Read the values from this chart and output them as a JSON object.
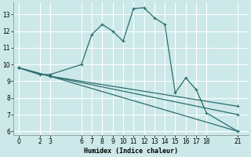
{
  "xlabel": "Humidex (Indice chaleur)",
  "line_color": "#2a6e6e",
  "bg_color": "#cce8e8",
  "grid_color": "#b0d8d8",
  "xlim": [
    -0.5,
    22
  ],
  "ylim": [
    5.8,
    13.7
  ],
  "xticks": [
    0,
    2,
    3,
    6,
    7,
    8,
    9,
    10,
    11,
    12,
    13,
    14,
    15,
    16,
    17,
    18,
    21
  ],
  "yticks": [
    6,
    7,
    8,
    9,
    10,
    11,
    12,
    13
  ],
  "series1_x": [
    0,
    2,
    3,
    6,
    7,
    8,
    9,
    10,
    11,
    12,
    13,
    14,
    15,
    16,
    17,
    18,
    21
  ],
  "series1_y": [
    9.8,
    9.4,
    9.4,
    10.0,
    11.8,
    12.4,
    12.0,
    11.4,
    13.35,
    13.4,
    12.8,
    12.4,
    8.3,
    9.2,
    8.5,
    7.1,
    6.0
  ],
  "series2_x": [
    0,
    3,
    21
  ],
  "series2_y": [
    9.8,
    9.3,
    6.0
  ],
  "series3_x": [
    0,
    3,
    21
  ],
  "series3_y": [
    9.8,
    9.3,
    7.0
  ],
  "series4_x": [
    0,
    3,
    21
  ],
  "series4_y": [
    9.8,
    9.3,
    7.5
  ]
}
